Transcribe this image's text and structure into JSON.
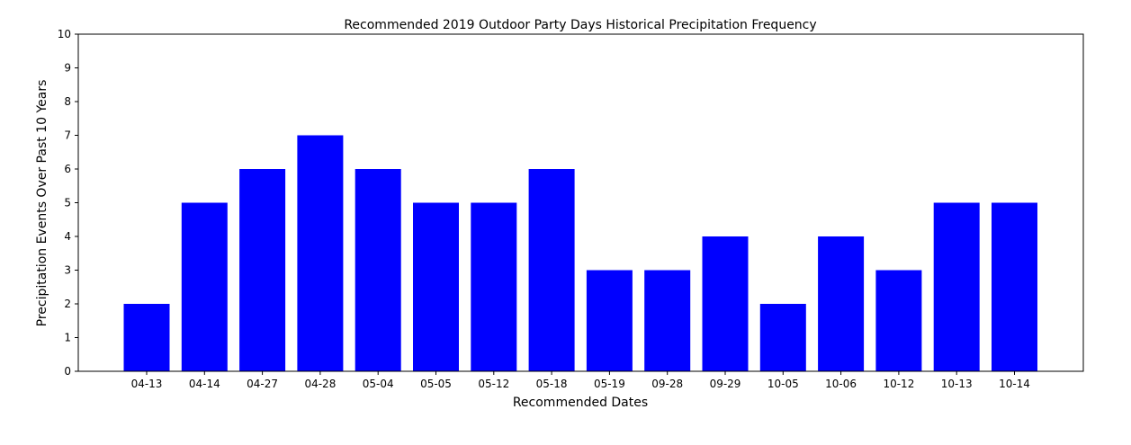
{
  "chart_data": {
    "type": "bar",
    "title": "Recommended 2019 Outdoor Party Days Historical Precipitation Frequency",
    "xlabel": "Recommended Dates",
    "ylabel": "Precipitation Events Over Past 10 Years",
    "categories": [
      "04-13",
      "04-14",
      "04-27",
      "04-28",
      "05-04",
      "05-05",
      "05-12",
      "05-18",
      "05-19",
      "09-28",
      "09-29",
      "10-05",
      "10-06",
      "10-12",
      "10-13",
      "10-14"
    ],
    "values": [
      2,
      5,
      6,
      7,
      6,
      5,
      5,
      6,
      3,
      3,
      4,
      2,
      4,
      3,
      5,
      5
    ],
    "ylim": [
      0,
      10
    ],
    "yticks": [
      "0",
      "1",
      "2",
      "3",
      "4",
      "5",
      "6",
      "7",
      "8",
      "9",
      "10"
    ],
    "bar_color": "#0000ff",
    "grid": false,
    "legend": "none"
  }
}
